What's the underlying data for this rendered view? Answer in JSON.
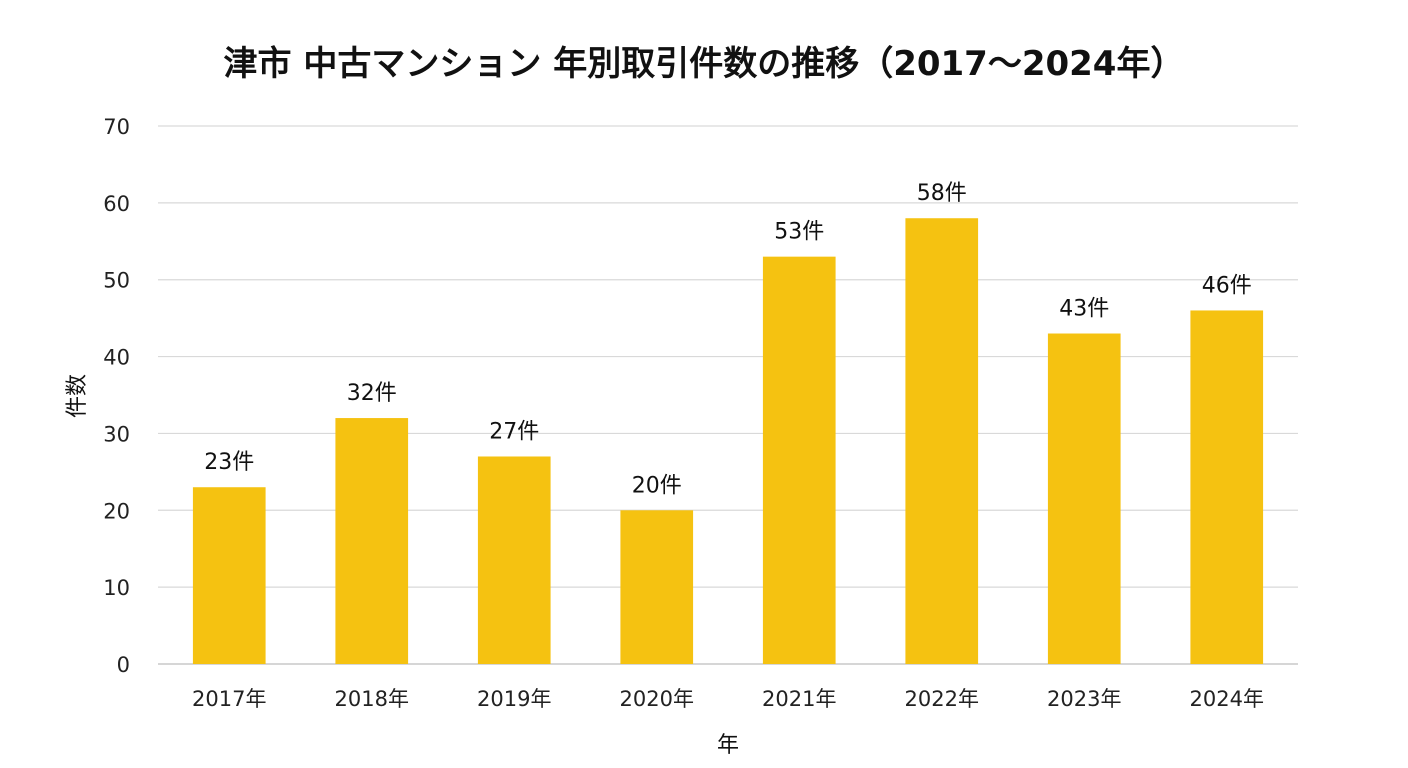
{
  "chart_data": {
    "type": "bar",
    "title": "津市 中古マンション 年別取引件数の推移（2017〜2024年）",
    "xlabel": "年",
    "ylabel": "件数",
    "categories": [
      "2017年",
      "2018年",
      "2019年",
      "2020年",
      "2021年",
      "2022年",
      "2023年",
      "2024年"
    ],
    "values": [
      23,
      32,
      27,
      20,
      53,
      58,
      43,
      46
    ],
    "data_labels": [
      "23件",
      "32件",
      "27件",
      "20件",
      "53件",
      "58件",
      "43件",
      "46件"
    ],
    "ylim": [
      0,
      70
    ],
    "yticks": [
      0,
      10,
      20,
      30,
      40,
      50,
      60,
      70
    ],
    "grid": true,
    "legend": "none",
    "bar_color": "#F5C211"
  }
}
